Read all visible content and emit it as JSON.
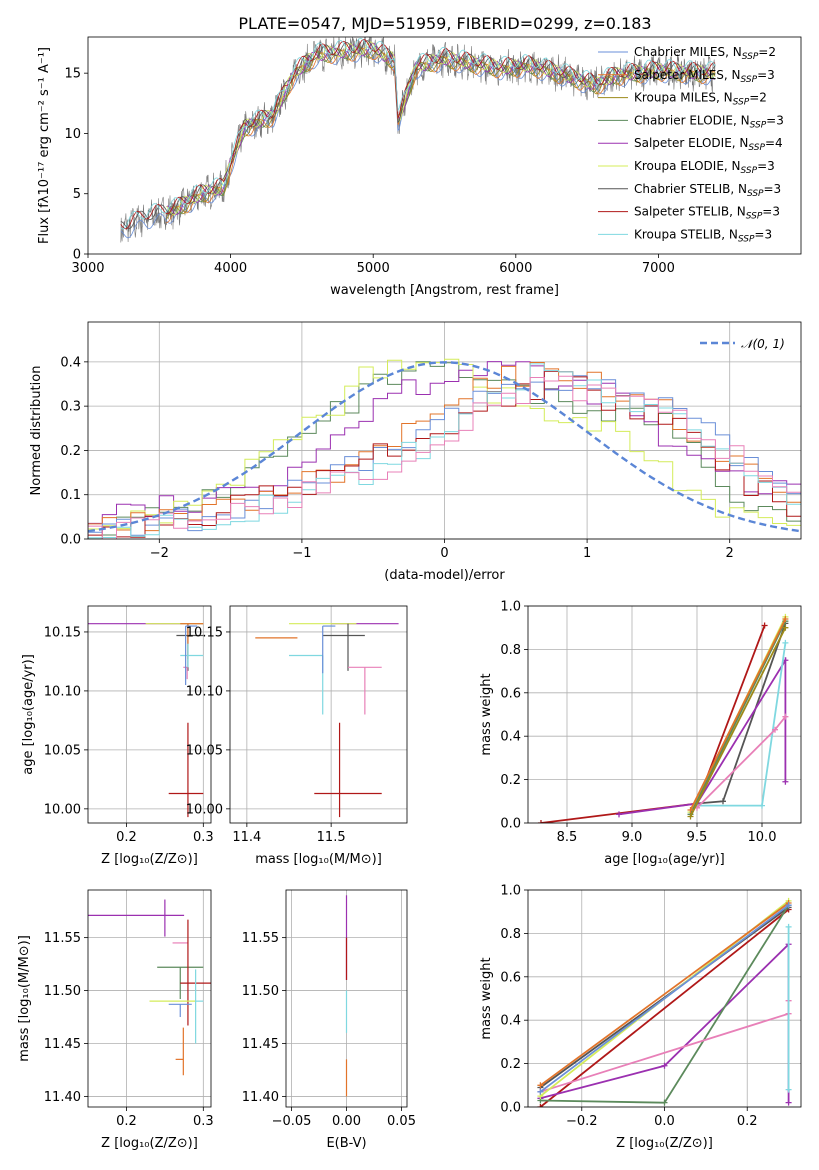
{
  "title": "PLATE=0547, MJD=51959, FIBERID=0299, z=0.183",
  "colors": {
    "chabrier_miles": "#6a8fd8",
    "salpeter_miles": "#e2742a",
    "kroupa_miles": "#9c8a18",
    "chabrier_elodie": "#5c8a5c",
    "salpeter_elodie": "#9b30b0",
    "kroupa_elodie": "#d4ec5a",
    "chabrier_stelib": "#555555",
    "salpeter_stelib": "#b01818",
    "kroupa_stelib": "#7fd8e0",
    "pink": "#e880b8",
    "data": "#777777",
    "normal": "#5b86d6"
  },
  "legend_spectrum": [
    {
      "name": "Chabrier MILES",
      "n": "2",
      "color_key": "chabrier_miles"
    },
    {
      "name": "Salpeter MILES",
      "n": "3",
      "color_key": "salpeter_miles"
    },
    {
      "name": "Kroupa MILES",
      "n": "2",
      "color_key": "kroupa_miles"
    },
    {
      "name": "Chabrier ELODIE",
      "n": "3",
      "color_key": "chabrier_elodie"
    },
    {
      "name": "Salpeter ELODIE",
      "n": "4",
      "color_key": "salpeter_elodie"
    },
    {
      "name": "Kroupa ELODIE",
      "n": "3",
      "color_key": "kroupa_elodie"
    },
    {
      "name": "Chabrier STELIB",
      "n": "3",
      "color_key": "chabrier_stelib"
    },
    {
      "name": "Salpeter STELIB",
      "n": "3",
      "color_key": "salpeter_stelib"
    },
    {
      "name": "Kroupa STELIB",
      "n": "3",
      "color_key": "kroupa_stelib"
    }
  ],
  "chart_data": [
    {
      "id": "spectrum",
      "type": "line",
      "xlabel": "wavelength [Angstrom, rest frame]",
      "ylabel": "Flux [fλ10⁻¹⁷ erg cm⁻² s⁻¹ A⁻¹]",
      "xlim": [
        3000,
        8000
      ],
      "ylim": [
        0,
        18
      ],
      "xticks": [
        3000,
        4000,
        5000,
        6000,
        7000
      ],
      "yticks": [
        0,
        5,
        10,
        15
      ],
      "x": [
        3230,
        3400,
        3600,
        3800,
        3950,
        4000,
        4100,
        4300,
        4450,
        4600,
        4800,
        5000,
        5150,
        5175,
        5300,
        5500,
        5700,
        5900,
        6100,
        6300,
        6563,
        6700,
        7000,
        7300
      ],
      "y": [
        2.0,
        3.0,
        3.6,
        5.0,
        5.5,
        7.5,
        10.5,
        11.5,
        15.0,
        16.5,
        16.8,
        17.0,
        16.0,
        11.0,
        15.5,
        16.2,
        15.8,
        15.4,
        15.6,
        15.0,
        14.0,
        14.8,
        15.2,
        15.0
      ]
    },
    {
      "id": "residuals",
      "type": "step-histogram",
      "xlabel": "(data-model)/error",
      "ylabel": "Normed distribution",
      "xlim": [
        -2.5,
        2.5
      ],
      "ylim": [
        0,
        0.49
      ],
      "xticks": [
        -2,
        -1,
        0,
        1,
        2
      ],
      "yticks": [
        0.0,
        0.1,
        0.2,
        0.3,
        0.4
      ],
      "legend": "𝒩(0, 1)",
      "bins": [
        -2.5,
        2.5,
        50
      ],
      "hist_centers": [
        -2.4,
        -2.0,
        -1.6,
        -1.2,
        -0.8,
        -0.4,
        0.0,
        0.4,
        0.8,
        1.2,
        1.6,
        2.0,
        2.4
      ],
      "series": [
        {
          "color_key": "chabrier_elodie",
          "values": [
            0.02,
            0.05,
            0.1,
            0.18,
            0.27,
            0.36,
            0.38,
            0.34,
            0.31,
            0.29,
            0.26,
            0.1,
            0.05
          ]
        },
        {
          "color_key": "salpeter_elodie",
          "values": [
            0.05,
            0.07,
            0.08,
            0.14,
            0.22,
            0.33,
            0.37,
            0.4,
            0.34,
            0.33,
            0.2,
            0.14,
            0.1
          ]
        },
        {
          "color_key": "kroupa_elodie",
          "values": [
            0.03,
            0.05,
            0.12,
            0.2,
            0.29,
            0.4,
            0.42,
            0.32,
            0.27,
            0.24,
            0.15,
            0.05,
            0.03
          ]
        },
        {
          "color_key": "salpeter_miles",
          "values": [
            0.02,
            0.04,
            0.06,
            0.1,
            0.14,
            0.21,
            0.29,
            0.36,
            0.38,
            0.34,
            0.28,
            0.17,
            0.1
          ]
        },
        {
          "color_key": "chabrier_miles",
          "values": [
            0.01,
            0.03,
            0.05,
            0.09,
            0.13,
            0.2,
            0.27,
            0.34,
            0.37,
            0.33,
            0.29,
            0.2,
            0.12
          ]
        },
        {
          "color_key": "salpeter_stelib",
          "values": [
            0.02,
            0.04,
            0.06,
            0.1,
            0.14,
            0.2,
            0.25,
            0.32,
            0.36,
            0.3,
            0.27,
            0.15,
            0.08
          ]
        },
        {
          "color_key": "kroupa_stelib",
          "values": [
            0.01,
            0.03,
            0.05,
            0.08,
            0.12,
            0.16,
            0.24,
            0.33,
            0.39,
            0.32,
            0.28,
            0.19,
            0.1
          ]
        },
        {
          "color_key": "pink",
          "values": [
            0.01,
            0.03,
            0.05,
            0.08,
            0.12,
            0.17,
            0.24,
            0.32,
            0.35,
            0.31,
            0.28,
            0.2,
            0.11
          ]
        }
      ]
    },
    {
      "id": "age-vs-Z",
      "type": "errorbar",
      "xlabel": "Z [log₁₀(Z/Z⊙)]",
      "ylabel": "age  [log₁₀(age/yr)]",
      "xlim": [
        0.15,
        0.31
      ],
      "ylim": [
        9.988,
        10.172
      ],
      "xticks": [
        0.2,
        0.3
      ],
      "yticks": [
        10.0,
        10.05,
        10.1,
        10.15
      ],
      "points": [
        {
          "x": 0.2,
          "y": 10.157,
          "xerr": [
            0.05,
            0.1
          ],
          "yerr": [
            0.0,
            0.0
          ],
          "color_key": "salpeter_elodie"
        },
        {
          "x": 0.26,
          "y": 10.157,
          "xerr": [
            0.035,
            0.04
          ],
          "yerr": [
            0.0,
            0.0
          ],
          "color_key": "kroupa_elodie"
        },
        {
          "x": 0.28,
          "y": 10.147,
          "xerr": [
            0.015,
            0.02
          ],
          "yerr": [
            0.03,
            0.01
          ],
          "color_key": "chabrier_stelib"
        },
        {
          "x": 0.28,
          "y": 10.157,
          "xerr": [
            0.01,
            0.02
          ],
          "yerr": [
            0.03,
            0.0
          ],
          "color_key": "salpeter_miles"
        },
        {
          "x": 0.28,
          "y": 10.13,
          "xerr": [
            0.01,
            0.02
          ],
          "yerr": [
            0.01,
            0.01
          ],
          "color_key": "kroupa_stelib"
        },
        {
          "x": 0.279,
          "y": 10.12,
          "xerr": [
            0.005,
            0.0
          ],
          "yerr": [
            0.01,
            0.0
          ],
          "color_key": "pink"
        },
        {
          "x": 0.277,
          "y": 10.155,
          "xerr": [
            0.0,
            0.015
          ],
          "yerr": [
            0.05,
            0.0
          ],
          "color_key": "chabrier_miles"
        },
        {
          "x": 0.28,
          "y": 10.013,
          "xerr": [
            0.025,
            0.02
          ],
          "yerr": [
            0.02,
            0.06
          ],
          "color_key": "salpeter_stelib"
        }
      ]
    },
    {
      "id": "age-vs-mass",
      "type": "errorbar",
      "xlabel": "mass [log₁₀(M/M⊙)]",
      "ylabel": "",
      "xlim": [
        11.38,
        11.59
      ],
      "ylim": [
        9.988,
        10.172
      ],
      "xticks": [
        11.4,
        11.5
      ],
      "yticks": [
        10.0,
        10.05,
        10.1,
        10.15
      ],
      "points": [
        {
          "x": 11.57,
          "y": 10.157,
          "xerr": [
            0.07,
            0.01
          ],
          "yerr": [
            0.0,
            0.0
          ],
          "color_key": "salpeter_elodie"
        },
        {
          "x": 11.49,
          "y": 10.157,
          "xerr": [
            0.04,
            0.04
          ],
          "yerr": [
            0.0,
            0.0
          ],
          "color_key": "kroupa_elodie"
        },
        {
          "x": 11.52,
          "y": 10.147,
          "xerr": [
            0.03,
            0.02
          ],
          "yerr": [
            0.03,
            0.01
          ],
          "color_key": "chabrier_stelib"
        },
        {
          "x": 11.44,
          "y": 10.145,
          "xerr": [
            0.03,
            0.02
          ],
          "yerr": [
            0.0,
            0.0
          ],
          "color_key": "salpeter_miles"
        },
        {
          "x": 11.49,
          "y": 10.13,
          "xerr": [
            0.04,
            0.0
          ],
          "yerr": [
            0.05,
            0.0
          ],
          "color_key": "kroupa_stelib"
        },
        {
          "x": 11.54,
          "y": 10.12,
          "xerr": [
            0.02,
            0.02
          ],
          "yerr": [
            0.04,
            0.0
          ],
          "color_key": "pink"
        },
        {
          "x": 11.49,
          "y": 10.155,
          "xerr": [
            0.0,
            0.015
          ],
          "yerr": [
            0.04,
            0.0
          ],
          "color_key": "chabrier_miles"
        },
        {
          "x": 11.51,
          "y": 10.013,
          "xerr": [
            0.03,
            0.05
          ],
          "yerr": [
            0.02,
            0.06
          ],
          "color_key": "salpeter_stelib"
        }
      ]
    },
    {
      "id": "massweight-vs-age",
      "type": "line",
      "xlabel": "age  [log₁₀(age/yr)]",
      "ylabel": "mass weight",
      "xlim": [
        8.2,
        10.3
      ],
      "ylim": [
        0.0,
        1.0
      ],
      "xticks": [
        8.5,
        9.0,
        9.5,
        10.0
      ],
      "yticks": [
        0.0,
        0.2,
        0.4,
        0.6,
        0.8,
        1.0
      ],
      "series": [
        {
          "color_key": "salpeter_stelib",
          "x": [
            8.3,
            9.5,
            10.02
          ],
          "y": [
            0.0,
            0.09,
            0.91
          ]
        },
        {
          "color_key": "chabrier_stelib",
          "x": [
            9.5,
            9.7,
            10.18
          ],
          "y": [
            0.09,
            0.1,
            0.92
          ]
        },
        {
          "color_key": "salpeter_elodie",
          "x": [
            8.9,
            9.5,
            10.18,
            10.18
          ],
          "y": [
            0.04,
            0.09,
            0.75,
            0.19
          ]
        },
        {
          "color_key": "kroupa_stelib",
          "x": [
            9.5,
            10.0,
            10.18
          ],
          "y": [
            0.08,
            0.08,
            0.83
          ]
        },
        {
          "color_key": "pink",
          "x": [
            9.5,
            10.1,
            10.18
          ],
          "y": [
            0.07,
            0.43,
            0.49
          ]
        },
        {
          "color_key": "kroupa_elodie",
          "x": [
            9.45,
            10.18
          ],
          "y": [
            0.05,
            0.95
          ]
        },
        {
          "color_key": "chabrier_elodie",
          "x": [
            9.45,
            10.18
          ],
          "y": [
            0.04,
            0.93
          ]
        },
        {
          "color_key": "kroupa_miles",
          "x": [
            9.45,
            10.18
          ],
          "y": [
            0.03,
            0.9
          ]
        },
        {
          "color_key": "salpeter_miles",
          "x": [
            9.45,
            10.18
          ],
          "y": [
            0.06,
            0.94
          ]
        }
      ]
    },
    {
      "id": "mass-vs-Z",
      "type": "errorbar",
      "xlabel": "Z [log₁₀(Z/Z⊙)]",
      "ylabel": "mass [log₁₀(M/M⊙)]",
      "xlim": [
        0.15,
        0.31
      ],
      "ylim": [
        11.39,
        11.595
      ],
      "xticks": [
        0.2,
        0.3
      ],
      "yticks": [
        11.4,
        11.45,
        11.5,
        11.55
      ],
      "points": [
        {
          "x": 0.2,
          "y": 11.571,
          "xerr": [
            0.05,
            0.075
          ],
          "yerr": [
            0.0,
            0.0
          ],
          "color_key": "salpeter_elodie"
        },
        {
          "x": 0.25,
          "y": 11.571,
          "xerr": [
            0.0,
            0.0
          ],
          "yerr": [
            0.02,
            0.015
          ],
          "color_key": "salpeter_elodie"
        },
        {
          "x": 0.27,
          "y": 11.545,
          "xerr": [
            0.01,
            0.01
          ],
          "yerr": [
            0.0,
            0.0
          ],
          "color_key": "pink"
        },
        {
          "x": 0.27,
          "y": 11.522,
          "xerr": [
            0.03,
            0.03
          ],
          "yerr": [
            0.03,
            0.0
          ],
          "color_key": "chabrier_elodie"
        },
        {
          "x": 0.28,
          "y": 11.507,
          "xerr": [
            0.01,
            0.03
          ],
          "yerr": [
            0.04,
            0.06
          ],
          "color_key": "salpeter_stelib"
        },
        {
          "x": 0.28,
          "y": 11.49,
          "xerr": [
            0.05,
            0.01
          ],
          "yerr": [
            0.0,
            0.0
          ],
          "color_key": "kroupa_elodie"
        },
        {
          "x": 0.27,
          "y": 11.487,
          "xerr": [
            0.015,
            0.015
          ],
          "yerr": [
            0.012,
            0.0
          ],
          "color_key": "chabrier_miles"
        },
        {
          "x": 0.29,
          "y": 11.49,
          "xerr": [
            0.0,
            0.01
          ],
          "yerr": [
            0.04,
            0.03
          ],
          "color_key": "kroupa_stelib"
        },
        {
          "x": 0.274,
          "y": 11.435,
          "xerr": [
            0.01,
            0.0
          ],
          "yerr": [
            0.015,
            0.03
          ],
          "color_key": "salpeter_miles"
        }
      ]
    },
    {
      "id": "mass-vs-ebv",
      "type": "errorbar",
      "xlabel": "E(B-V)",
      "ylabel": "",
      "xlim": [
        -0.055,
        0.055
      ],
      "ylim": [
        11.39,
        11.595
      ],
      "xticks": [
        -0.05,
        0.0,
        0.05
      ],
      "yticks": [
        11.4,
        11.45,
        11.5,
        11.55
      ],
      "points": [
        {
          "x": 0.0,
          "y": 11.54,
          "xerr": [
            0.0,
            0.0
          ],
          "yerr": [
            0.03,
            0.05
          ],
          "color_key": "salpeter_elodie"
        },
        {
          "x": 0.0,
          "y": 11.53,
          "xerr": [
            0.0,
            0.0
          ],
          "yerr": [
            0.02,
            0.02
          ],
          "color_key": "salpeter_stelib"
        },
        {
          "x": 0.0,
          "y": 11.48,
          "xerr": [
            0.0,
            0.0
          ],
          "yerr": [
            0.02,
            0.02
          ],
          "color_key": "kroupa_stelib"
        },
        {
          "x": 0.0,
          "y": 11.42,
          "xerr": [
            0.0,
            0.0
          ],
          "yerr": [
            0.02,
            0.015
          ],
          "color_key": "salpeter_miles"
        }
      ]
    },
    {
      "id": "massweight-vs-Z",
      "type": "line",
      "xlabel": "Z [log₁₀(Z/Z⊙)]",
      "ylabel": "mass weight",
      "xlim": [
        -0.33,
        0.33
      ],
      "ylim": [
        0.0,
        1.0
      ],
      "xticks": [
        -0.2,
        0.0,
        0.2
      ],
      "yticks": [
        0.0,
        0.2,
        0.4,
        0.6,
        0.8,
        1.0
      ],
      "series": [
        {
          "color_key": "salpeter_stelib",
          "x": [
            -0.3,
            0.3
          ],
          "y": [
            0.0,
            0.91
          ]
        },
        {
          "color_key": "chabrier_stelib",
          "x": [
            -0.3,
            0.3
          ],
          "y": [
            0.09,
            0.92
          ]
        },
        {
          "color_key": "salpeter_elodie",
          "x": [
            -0.3,
            0.0,
            0.3,
            0.3
          ],
          "y": [
            0.04,
            0.19,
            0.75,
            0.02
          ]
        },
        {
          "color_key": "chabrier_elodie",
          "x": [
            -0.3,
            0.0,
            0.3
          ],
          "y": [
            0.03,
            0.02,
            0.93
          ]
        },
        {
          "color_key": "pink",
          "x": [
            -0.3,
            0.3,
            0.3
          ],
          "y": [
            0.07,
            0.43,
            0.49
          ]
        },
        {
          "color_key": "kroupa_stelib",
          "x": [
            0.3,
            0.3
          ],
          "y": [
            0.83,
            0.08
          ]
        },
        {
          "color_key": "kroupa_elodie",
          "x": [
            -0.3,
            0.3
          ],
          "y": [
            0.05,
            0.95
          ]
        },
        {
          "color_key": "salpeter_miles",
          "x": [
            -0.3,
            0.3
          ],
          "y": [
            0.1,
            0.94
          ]
        },
        {
          "color_key": "chabrier_miles",
          "x": [
            -0.3,
            0.3
          ],
          "y": [
            0.07,
            0.93
          ]
        }
      ]
    }
  ]
}
